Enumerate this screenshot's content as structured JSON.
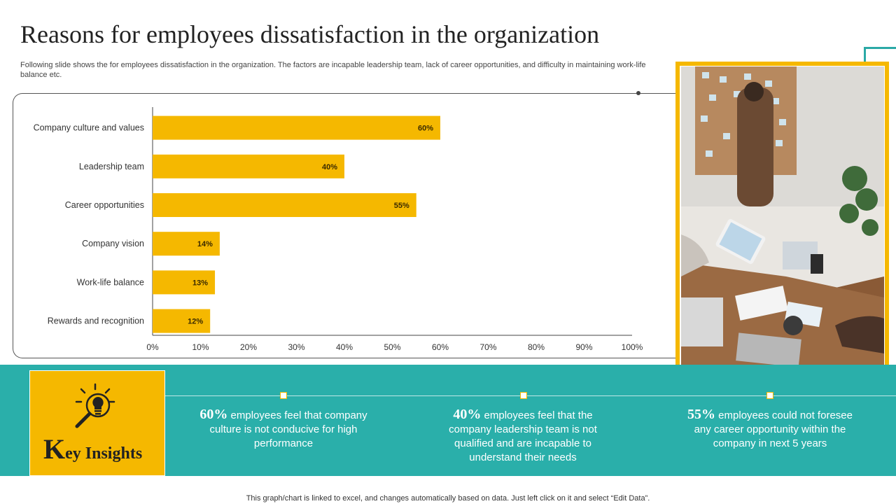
{
  "title": "Reasons for employees dissatisfaction in the organization",
  "subtitle": "Following slide shows the for employees dissatisfaction in the organization. The factors are incapable leadership team, lack of career opportunities, and difficulty in maintaining work-life balance etc.",
  "chart_data": {
    "type": "bar",
    "orientation": "horizontal",
    "categories": [
      "Company culture and values",
      "Leadership team",
      "Career opportunities",
      "Company vision",
      "Work-life balance",
      "Rewards and recognition"
    ],
    "values": [
      60,
      40,
      55,
      14,
      13,
      12
    ],
    "value_labels": [
      "60%",
      "40%",
      "55%",
      "14%",
      "13%",
      "12%"
    ],
    "xlim": [
      0,
      100
    ],
    "x_ticks": [
      "0%",
      "10%",
      "20%",
      "30%",
      "40%",
      "50%",
      "60%",
      "70%",
      "80%",
      "90%",
      "100%"
    ],
    "bar_color": "#f5b800",
    "grid": false
  },
  "key_insights": {
    "title_first": "K",
    "title_rest": "ey Insights",
    "items": [
      {
        "pct": "60%",
        "text": " employees feel that company culture is not conducive for high performance"
      },
      {
        "pct": "40%",
        "text": " employees feel that the company leadership team is not qualified and are incapable to understand their needs"
      },
      {
        "pct": "55%",
        "text": " employees could not foresee any career opportunity within the company in next 5 years"
      }
    ]
  },
  "footer": "This graph/chart is linked to excel, and changes automatically based on data. Just left click on it and select “Edit Data”.",
  "colors": {
    "accent": "#f5b800",
    "teal": "#2aafaa"
  },
  "icons": {
    "key_insights": "bulb-magnifier-icon",
    "photo": "office-meeting-photo"
  }
}
